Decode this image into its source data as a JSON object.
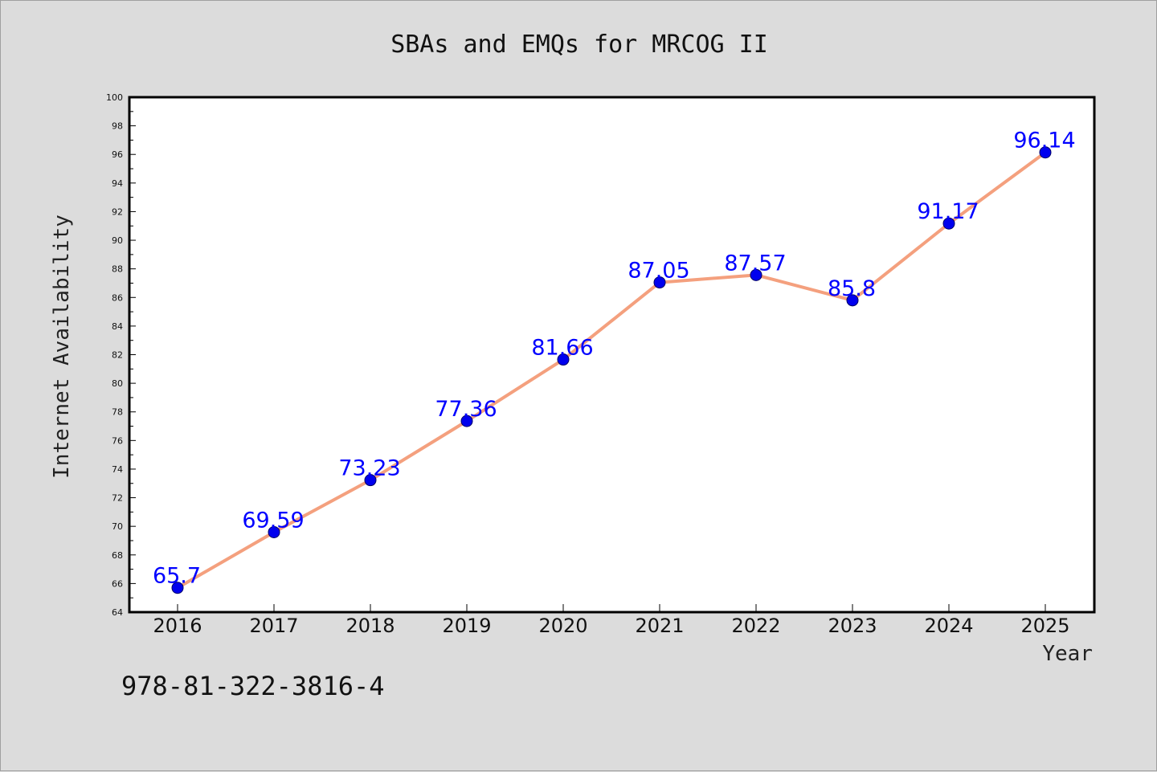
{
  "chart_data": {
    "type": "line",
    "title": "SBAs and EMQs for MRCOG II",
    "xlabel": "Year",
    "ylabel": "Internet Availability",
    "categories": [
      "2016",
      "2017",
      "2018",
      "2019",
      "2020",
      "2021",
      "2022",
      "2023",
      "2024",
      "2025"
    ],
    "series": [
      {
        "values": [
          65.7,
          69.59,
          73.23,
          77.36,
          81.66,
          87.05,
          87.57,
          85.8,
          91.17,
          96.14
        ],
        "labels": [
          "65.7",
          "69.59",
          "73.23",
          "77.36",
          "81.66",
          "87.05",
          "87.57",
          "85.8",
          "91.17",
          "96.14"
        ]
      }
    ],
    "ylim": [
      64,
      100
    ],
    "ytick_step": 2,
    "grid": false,
    "legend": "none",
    "colors": {
      "line": "#f4a07e",
      "marker": "#0000ee",
      "label": "#0000ff",
      "plot_bg": "#ffffff",
      "page_bg": "#dcdcdc"
    }
  },
  "footnote": "978-81-322-3816-4"
}
